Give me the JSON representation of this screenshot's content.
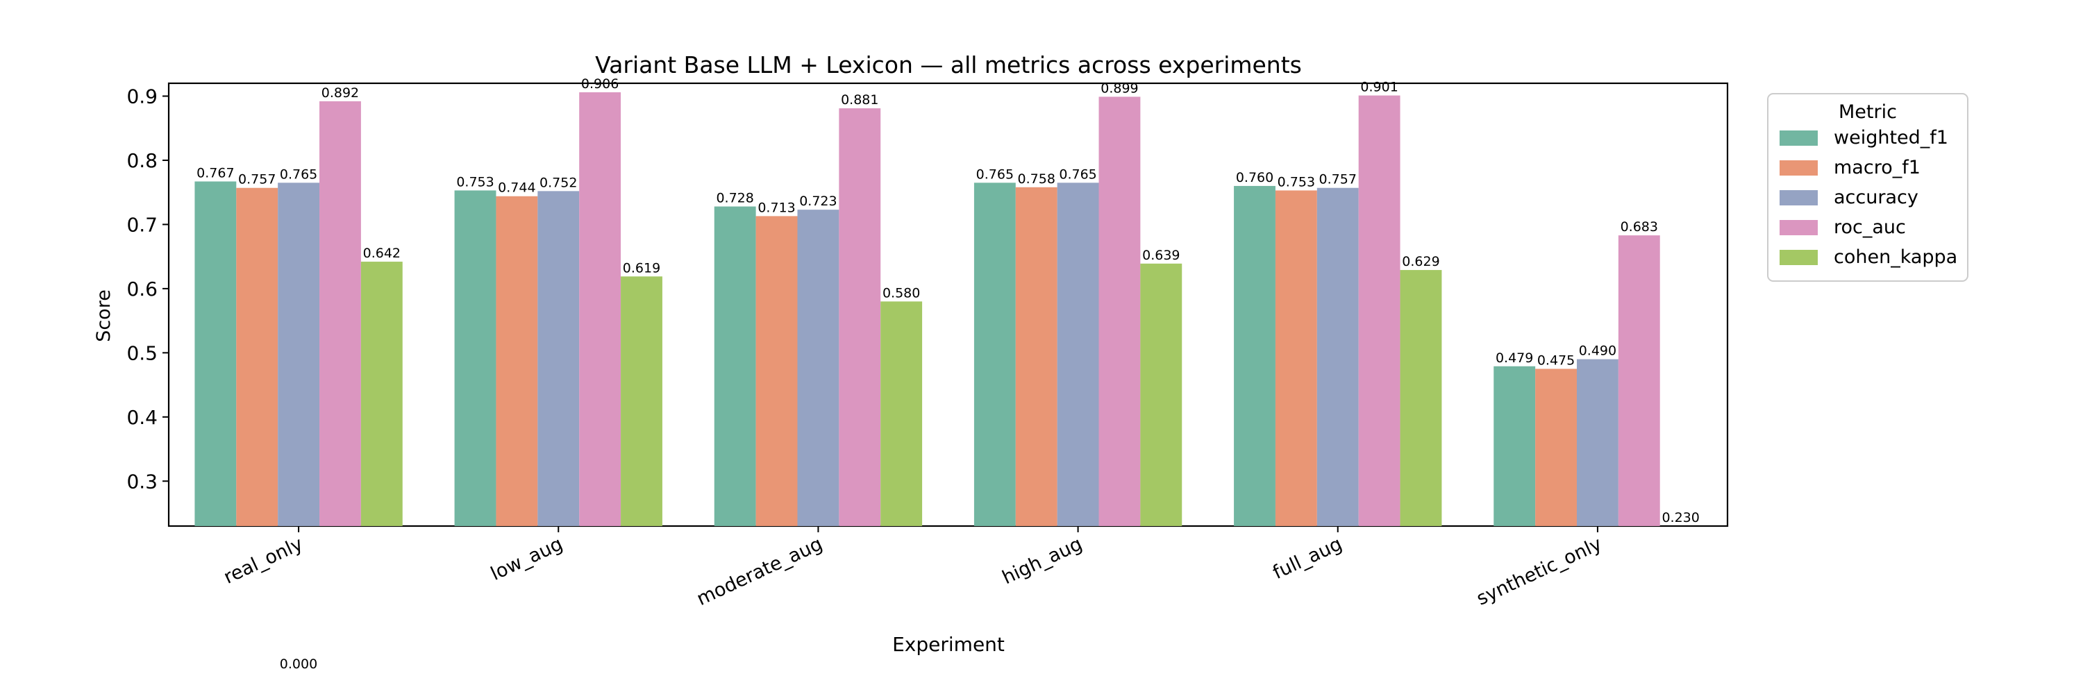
{
  "chart_data": {
    "type": "bar",
    "title": "Variant Base LLM + Lexicon — all metrics across experiments",
    "xlabel": "Experiment",
    "ylabel": "Score",
    "ylim": [
      0.23,
      0.92
    ],
    "yticks": [
      "0.3",
      "0.4",
      "0.5",
      "0.6",
      "0.7",
      "0.8",
      "0.9"
    ],
    "grid": false,
    "legend_title": "Metric",
    "legend_position": "upper-right-outside",
    "categories": [
      "real_only",
      "low_aug",
      "moderate_aug",
      "high_aug",
      "full_aug",
      "synthetic_only"
    ],
    "series": [
      {
        "name": "weighted_f1",
        "color": "#72b6a1",
        "values": [
          0.767,
          0.753,
          0.728,
          0.765,
          0.76,
          0.479
        ],
        "labels": [
          "0.767",
          "0.753",
          "0.728",
          "0.765",
          "0.760",
          "0.479"
        ]
      },
      {
        "name": "macro_f1",
        "color": "#e99675",
        "values": [
          0.757,
          0.744,
          0.713,
          0.758,
          0.753,
          0.475
        ],
        "labels": [
          "0.757",
          "0.744",
          "0.713",
          "0.758",
          "0.753",
          "0.475"
        ]
      },
      {
        "name": "accuracy",
        "color": "#95a3c3",
        "values": [
          0.765,
          0.752,
          0.723,
          0.765,
          0.757,
          0.49
        ],
        "labels": [
          "0.765",
          "0.752",
          "0.723",
          "0.765",
          "0.757",
          "0.490"
        ]
      },
      {
        "name": "roc_auc",
        "color": "#db96c0",
        "values": [
          0.892,
          0.906,
          0.881,
          0.899,
          0.901,
          0.683
        ],
        "labels": [
          "0.892",
          "0.906",
          "0.881",
          "0.899",
          "0.901",
          "0.683"
        ]
      },
      {
        "name": "cohen_kappa",
        "color": "#a4c864",
        "values": [
          0.642,
          0.619,
          0.58,
          0.639,
          0.629,
          0.23
        ],
        "labels": [
          "0.642",
          "0.619",
          "0.580",
          "0.639",
          "0.629",
          "0.230"
        ]
      }
    ],
    "stray_label": "0.000"
  }
}
